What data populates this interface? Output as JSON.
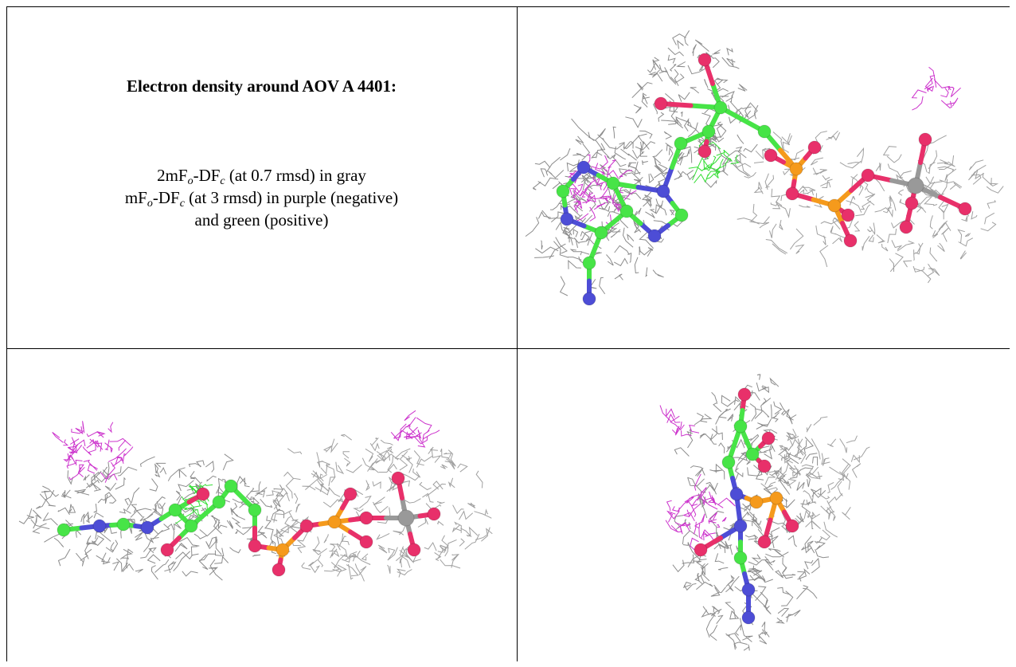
{
  "figure": {
    "title": "Electron density around AOV A 4401:",
    "legend_lines": [
      [
        "2mF",
        "o",
        "-DF",
        "c",
        " (at 0.7 rmsd) in gray"
      ],
      [
        "mF",
        "o",
        "-DF",
        "c",
        " (at 3 rmsd) in purple (negative)"
      ],
      [
        "and green (positive)"
      ]
    ]
  }
}
